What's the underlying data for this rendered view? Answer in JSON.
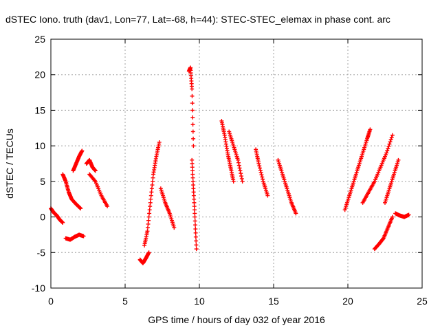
{
  "chart_data": {
    "type": "scatter",
    "title": "dSTEC Iono. truth (dav1, Lon=77, Lat=-68, h=44): STEC-STEC_elemax in phase cont. arc",
    "xlabel": "GPS time / hours of day 032 of year 2016",
    "ylabel": "dSTEC  / TECUs",
    "xlim": [
      0,
      25
    ],
    "ylim": [
      -10,
      25
    ],
    "xticks": [
      0,
      5,
      10,
      15,
      20,
      25
    ],
    "yticks": [
      -10,
      -5,
      0,
      5,
      10,
      15,
      20,
      25
    ],
    "grid": true,
    "marker": "plus",
    "marker_color": "#ff0000",
    "arcs": [
      {
        "x": [
          0.0,
          0.2,
          0.4,
          0.6,
          0.8
        ],
        "y": [
          1.2,
          0.6,
          0.2,
          -0.4,
          -0.8
        ]
      },
      {
        "x": [
          0.8,
          1.0,
          1.2,
          1.4,
          1.7,
          2.0
        ],
        "y": [
          6.0,
          5.0,
          3.5,
          2.5,
          1.8,
          1.2
        ]
      },
      {
        "x": [
          1.5,
          1.7,
          1.9,
          2.1
        ],
        "y": [
          6.5,
          7.5,
          8.5,
          9.3
        ]
      },
      {
        "x": [
          1.0,
          1.3,
          1.6,
          1.9,
          2.2
        ],
        "y": [
          -3.0,
          -3.2,
          -2.8,
          -2.5,
          -2.7
        ]
      },
      {
        "x": [
          2.4,
          2.6,
          2.8,
          3.0
        ],
        "y": [
          7.5,
          8.0,
          7.0,
          6.5
        ]
      },
      {
        "x": [
          2.6,
          3.0,
          3.4,
          3.8
        ],
        "y": [
          6.0,
          5.0,
          3.0,
          1.5
        ]
      },
      {
        "x": [
          6.0,
          6.2,
          6.4,
          6.6
        ],
        "y": [
          -6.0,
          -6.5,
          -5.8,
          -5.0
        ]
      },
      {
        "x": [
          6.3,
          6.5,
          6.7,
          6.9,
          7.1,
          7.3
        ],
        "y": [
          -4.0,
          -2.0,
          2.0,
          6.0,
          8.5,
          10.5
        ]
      },
      {
        "x": [
          7.4,
          7.7,
          8.0,
          8.3
        ],
        "y": [
          4.0,
          2.0,
          0.5,
          -1.5
        ]
      },
      {
        "x": [
          9.3,
          9.4,
          9.5,
          9.6
        ],
        "y": [
          20.5,
          21.0,
          18.0,
          10.0
        ]
      },
      {
        "x": [
          9.5,
          9.6,
          9.7,
          9.8
        ],
        "y": [
          8.0,
          4.0,
          0.0,
          -4.5
        ]
      },
      {
        "x": [
          11.5,
          11.7,
          11.9,
          12.1,
          12.3
        ],
        "y": [
          13.5,
          11.5,
          9.0,
          7.0,
          5.0
        ]
      },
      {
        "x": [
          12.0,
          12.3,
          12.6,
          12.9
        ],
        "y": [
          12.0,
          10.0,
          8.0,
          5.0
        ]
      },
      {
        "x": [
          13.8,
          14.0,
          14.3,
          14.6
        ],
        "y": [
          9.5,
          7.5,
          5.0,
          3.0
        ]
      },
      {
        "x": [
          15.3,
          15.6,
          15.9,
          16.2,
          16.5
        ],
        "y": [
          8.0,
          6.0,
          4.0,
          2.0,
          0.5
        ]
      },
      {
        "x": [
          19.8,
          20.1,
          20.4,
          20.7,
          21.0,
          21.3,
          21.5
        ],
        "y": [
          1.0,
          3.0,
          5.0,
          7.0,
          9.0,
          11.0,
          12.3
        ]
      },
      {
        "x": [
          21.0,
          21.4,
          21.8,
          22.2,
          22.6,
          23.0
        ],
        "y": [
          2.0,
          3.5,
          5.0,
          7.0,
          9.0,
          11.5
        ]
      },
      {
        "x": [
          21.8,
          22.1,
          22.4,
          22.7,
          23.0
        ],
        "y": [
          -4.5,
          -3.8,
          -3.0,
          -1.5,
          0.0
        ]
      },
      {
        "x": [
          22.5,
          22.8,
          23.1,
          23.4
        ],
        "y": [
          2.0,
          4.0,
          6.0,
          8.0
        ]
      },
      {
        "x": [
          23.2,
          23.5,
          23.8,
          24.1
        ],
        "y": [
          0.5,
          0.2,
          0.0,
          0.3
        ]
      }
    ]
  }
}
